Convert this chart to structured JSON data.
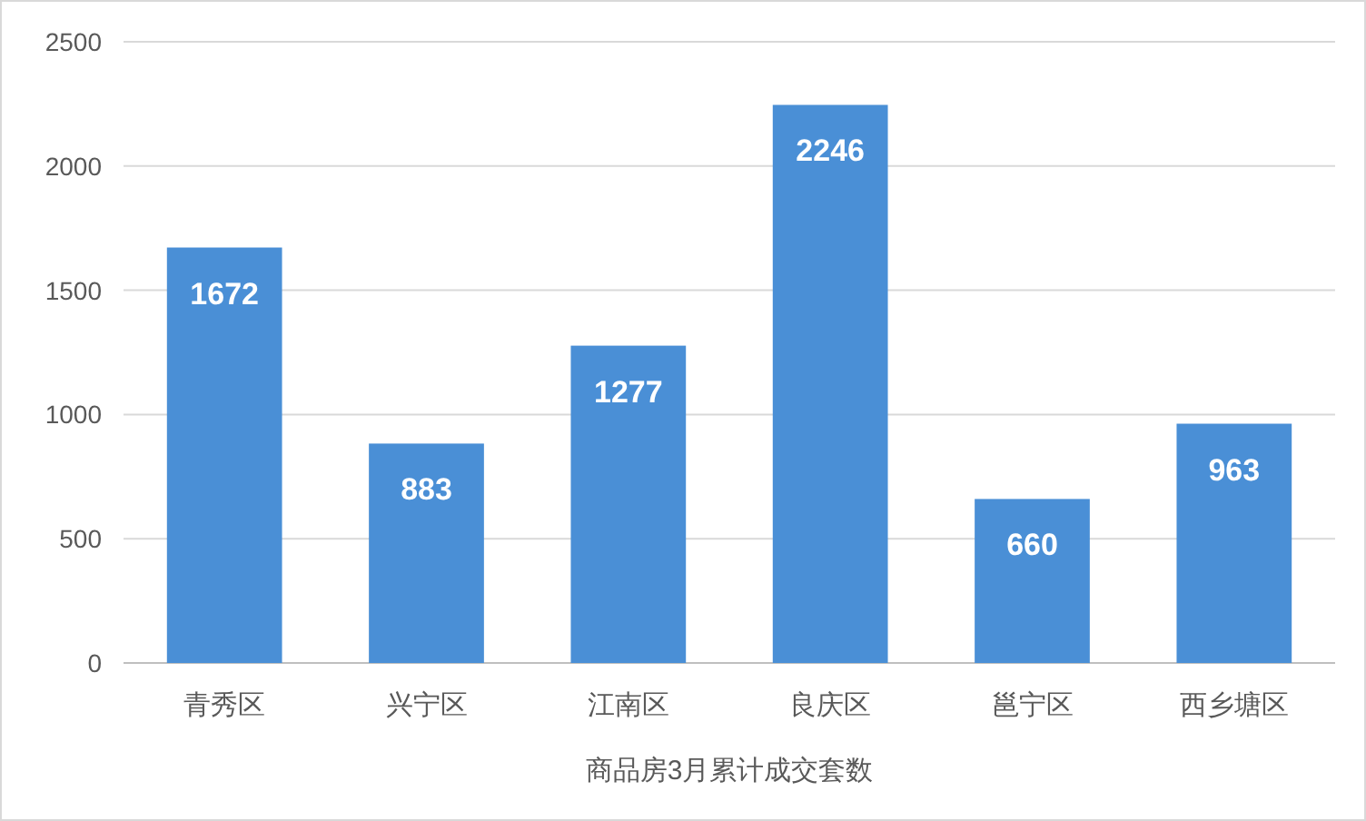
{
  "chart_data": {
    "type": "bar",
    "categories": [
      "青秀区",
      "兴宁区",
      "江南区",
      "良庆区",
      "邕宁区",
      "西乡塘区"
    ],
    "values": [
      1672,
      883,
      1277,
      2246,
      660,
      963
    ],
    "color": "#4a8fd6",
    "xlabel": "商品房3月累计成交套数",
    "ylim": [
      0,
      2500
    ],
    "yticks": [
      0,
      500,
      1000,
      1500,
      2000,
      2500
    ],
    "grid": "y",
    "data_labels": true
  }
}
